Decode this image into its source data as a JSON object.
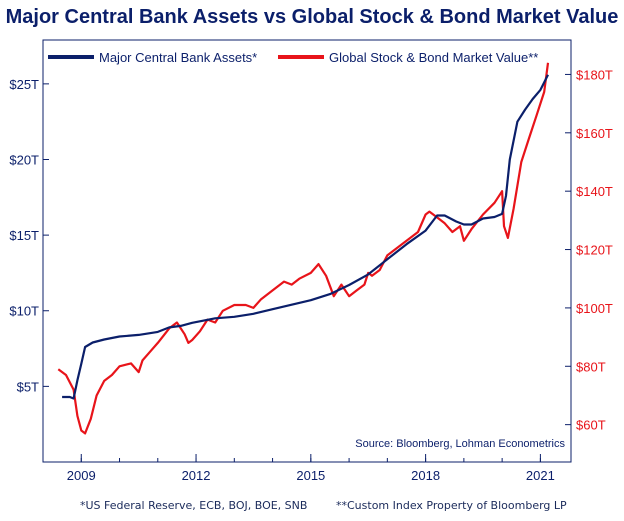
{
  "chart_data": {
    "type": "line",
    "title": "Major Central Bank Assets vs Global Stock & Bond Market Value",
    "source": "Source: Bloomberg, Lohman Econometrics",
    "footnotes": [
      "*US Federal Reserve, ECB, BOJ, BOE, SNB",
      "**Custom Index Property of Bloomberg LP"
    ],
    "grid": false,
    "legend_placement": "top-left",
    "x_axis": {
      "min": 2008.0,
      "max": 2021.8,
      "ticks": [
        2009,
        2012,
        2015,
        2018,
        2021
      ],
      "tick_labels": [
        "2009",
        "2012",
        "2015",
        "2018",
        "2021"
      ]
    },
    "y_left": {
      "min": 0,
      "max": 27.9,
      "ticks": [
        5,
        10,
        15,
        20,
        25
      ],
      "tick_labels": [
        "$5T",
        "$10T",
        "$15T",
        "$20T",
        "$25T"
      ],
      "color": "#0b1f6a"
    },
    "y_right": {
      "min": 47.2,
      "max": 191.8,
      "ticks": [
        60,
        80,
        100,
        120,
        140,
        160,
        180
      ],
      "tick_labels": [
        "$60T",
        "$80T",
        "$100T",
        "$120T",
        "$140T",
        "$160T",
        "$180T"
      ],
      "color": "#e8141a"
    },
    "series": [
      {
        "name": "Major Central Bank Assets*",
        "axis": "left",
        "color": "#0b1f6a",
        "x": [
          2008.5,
          2008.7,
          2008.8,
          2008.9,
          2009.0,
          2009.1,
          2009.3,
          2009.6,
          2010.0,
          2010.5,
          2011.0,
          2011.3,
          2011.6,
          2011.9,
          2012.1,
          2012.5,
          2013.0,
          2013.5,
          2014.0,
          2014.5,
          2015.0,
          2015.5,
          2016.0,
          2016.5,
          2017.0,
          2017.5,
          2018.0,
          2018.3,
          2018.5,
          2018.8,
          2019.0,
          2019.2,
          2019.5,
          2019.8,
          2020.0,
          2020.1,
          2020.2,
          2020.4,
          2020.6,
          2020.8,
          2021.0,
          2021.1,
          2021.2
        ],
        "values": [
          4.3,
          4.3,
          4.2,
          5.4,
          6.5,
          7.6,
          7.9,
          8.1,
          8.3,
          8.4,
          8.6,
          8.9,
          9.0,
          9.2,
          9.3,
          9.5,
          9.6,
          9.8,
          10.1,
          10.4,
          10.7,
          11.1,
          11.7,
          12.4,
          13.4,
          14.4,
          15.3,
          16.3,
          16.3,
          15.9,
          15.7,
          15.7,
          16.1,
          16.2,
          16.4,
          17.6,
          20.0,
          22.5,
          23.3,
          24.0,
          24.6,
          25.1,
          25.6
        ]
      },
      {
        "name": "Global Stock & Bond Market Value**",
        "axis": "right",
        "color": "#e8141a",
        "x": [
          2008.4,
          2008.6,
          2008.8,
          2008.9,
          2009.0,
          2009.1,
          2009.25,
          2009.4,
          2009.6,
          2009.8,
          2010.0,
          2010.3,
          2010.5,
          2010.6,
          2010.8,
          2011.0,
          2011.3,
          2011.5,
          2011.7,
          2011.8,
          2011.9,
          2012.1,
          2012.3,
          2012.5,
          2012.7,
          2013.0,
          2013.3,
          2013.5,
          2013.7,
          2014.0,
          2014.3,
          2014.5,
          2014.7,
          2015.0,
          2015.2,
          2015.4,
          2015.6,
          2015.8,
          2016.0,
          2016.2,
          2016.4,
          2016.5,
          2016.6,
          2016.8,
          2017.0,
          2017.3,
          2017.6,
          2017.8,
          2018.0,
          2018.1,
          2018.3,
          2018.5,
          2018.7,
          2018.9,
          2019.0,
          2019.2,
          2019.5,
          2019.8,
          2020.0,
          2020.05,
          2020.15,
          2020.3,
          2020.5,
          2020.7,
          2020.9,
          2021.1,
          2021.2
        ],
        "values": [
          79,
          77,
          72,
          63,
          58,
          57,
          62,
          70,
          75,
          77,
          80,
          81,
          78,
          82,
          85,
          88,
          93,
          95,
          91,
          88,
          89,
          92,
          96,
          95,
          99,
          101,
          101,
          100,
          103,
          106,
          109,
          108,
          110,
          112,
          115,
          111,
          104,
          108,
          104,
          106,
          108,
          112,
          111,
          113,
          118,
          121,
          124,
          126,
          132,
          133,
          131,
          129,
          126,
          128,
          123,
          127,
          132,
          136,
          140,
          128,
          124,
          134,
          150,
          158,
          166,
          174,
          184
        ]
      }
    ]
  }
}
